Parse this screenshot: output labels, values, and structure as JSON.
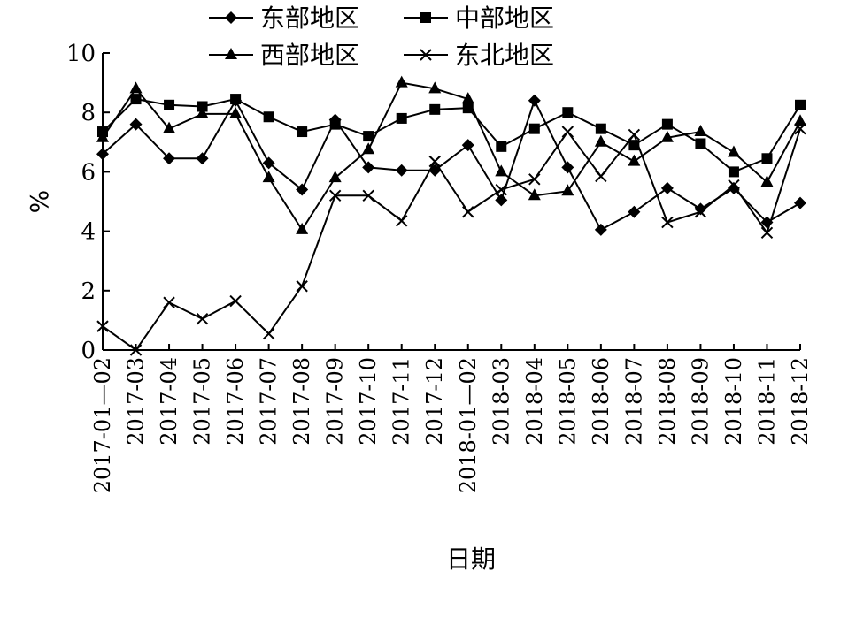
{
  "chart_data": {
    "type": "line",
    "xlabel": "日期",
    "ylabel": "%",
    "ylim": [
      0,
      10
    ],
    "yticks": [
      0,
      2,
      4,
      6,
      8,
      10
    ],
    "grid": false,
    "legend_position": "top",
    "categories": [
      "2017-01—02",
      "2017-03",
      "2017-04",
      "2017-05",
      "2017-06",
      "2017-07",
      "2017-08",
      "2017-09",
      "2017-10",
      "2017-11",
      "2017-12",
      "2018-01—02",
      "2018-03",
      "2018-04",
      "2018-05",
      "2018-06",
      "2018-07",
      "2018-08",
      "2018-09",
      "2018-10",
      "2018-11",
      "2018-12"
    ],
    "series": [
      {
        "name": "东部地区",
        "marker": "diamond",
        "values": [
          6.6,
          7.6,
          6.45,
          6.45,
          8.4,
          6.3,
          5.4,
          7.75,
          6.15,
          6.05,
          6.05,
          6.9,
          5.05,
          8.4,
          6.15,
          4.05,
          4.65,
          5.45,
          4.75,
          5.45,
          4.3,
          4.95
        ]
      },
      {
        "name": "中部地区",
        "marker": "square",
        "values": [
          7.35,
          8.45,
          8.25,
          8.2,
          8.45,
          7.85,
          7.35,
          7.6,
          7.2,
          7.8,
          8.1,
          8.15,
          6.85,
          7.45,
          8.0,
          7.45,
          6.9,
          7.6,
          6.95,
          6.0,
          6.45,
          8.25
        ]
      },
      {
        "name": "西部地区",
        "marker": "triangle",
        "values": [
          7.15,
          8.8,
          7.45,
          7.95,
          7.95,
          5.8,
          4.05,
          5.8,
          6.75,
          9.0,
          8.8,
          8.45,
          6.0,
          5.2,
          5.35,
          7.0,
          6.35,
          7.15,
          7.35,
          6.65,
          5.65,
          7.7
        ]
      },
      {
        "name": "东北地区",
        "marker": "x",
        "values": [
          0.8,
          0.0,
          1.6,
          1.05,
          1.65,
          0.55,
          2.15,
          5.2,
          5.2,
          4.35,
          6.35,
          4.65,
          5.4,
          5.75,
          7.35,
          5.85,
          7.25,
          4.3,
          4.65,
          5.55,
          3.95,
          7.45
        ]
      }
    ]
  }
}
